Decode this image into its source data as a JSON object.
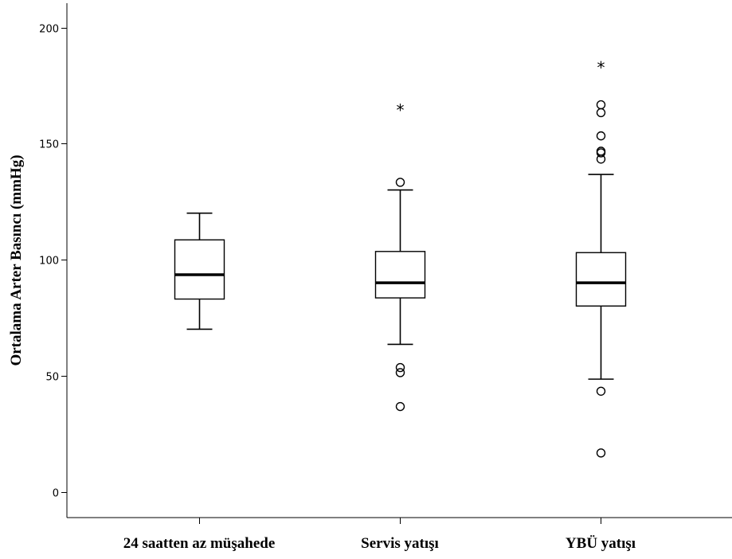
{
  "chart_data": {
    "type": "boxplot",
    "ylabel": "Ortalama Arter Basıncı (mmHg)",
    "xlabel": "",
    "ylim": [
      -11,
      210
    ],
    "yticks": [
      0,
      50,
      100,
      150,
      200
    ],
    "grid": false,
    "categories": [
      "24 saatten az müşahede",
      "Servis yatışı",
      "YBÜ yatışı"
    ],
    "boxes": [
      {
        "category": "24 saatten az müşahede",
        "whisker_low": 70,
        "q1": 83,
        "median": 93.5,
        "q3": 108.5,
        "whisker_high": 120,
        "outliers": [],
        "extremes": []
      },
      {
        "category": "Servis yatışı",
        "whisker_low": 63.5,
        "q1": 83.5,
        "median": 90,
        "q3": 103.5,
        "whisker_high": 130,
        "outliers": [
          133.3,
          53.5,
          51.3,
          36.7
        ],
        "extremes": [
          165
        ]
      },
      {
        "category": "YBÜ yatışı",
        "whisker_low": 48.5,
        "q1": 80,
        "median": 90,
        "q3": 103,
        "whisker_high": 136.7,
        "outliers": [
          166.7,
          163.3,
          153.3,
          146.7,
          146,
          143.3,
          43.3,
          16.7
        ],
        "extremes": [
          183.3
        ]
      }
    ]
  }
}
